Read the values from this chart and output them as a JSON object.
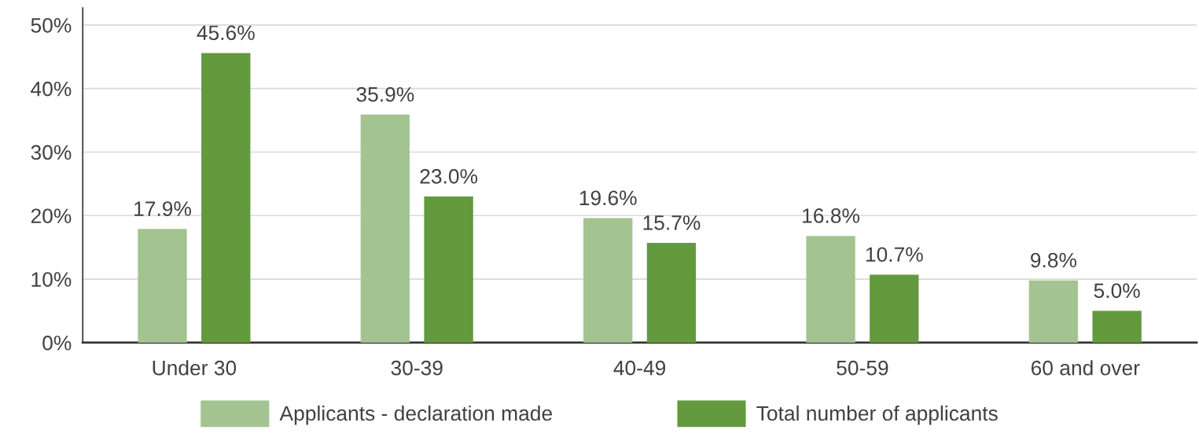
{
  "chart_data": {
    "type": "bar",
    "categories": [
      "Under 30",
      "30-39",
      "40-49",
      "50-59",
      "60 and over"
    ],
    "series": [
      {
        "name": "Applicants - declaration made",
        "color": "#a3c490",
        "values": [
          17.9,
          35.9,
          19.6,
          16.8,
          9.8
        ],
        "value_labels": [
          "17.9%",
          "35.9%",
          "19.6%",
          "16.8%",
          "9.8%"
        ]
      },
      {
        "name": "Total number of applicants",
        "color": "#629a3d",
        "values": [
          45.6,
          23.0,
          15.7,
          10.7,
          5.0
        ],
        "value_labels": [
          "45.6%",
          "23.0%",
          "15.7%",
          "10.7%",
          "5.0%"
        ]
      }
    ],
    "ylim": [
      0,
      52.7
    ],
    "yticks": [
      {
        "value": 0,
        "label": "0%"
      },
      {
        "value": 10,
        "label": "10%"
      },
      {
        "value": 20,
        "label": "20%"
      },
      {
        "value": 30,
        "label": "30%"
      },
      {
        "value": 40,
        "label": "40%"
      },
      {
        "value": 50,
        "label": "50%"
      }
    ],
    "grid": "y",
    "legend": "bottom"
  }
}
